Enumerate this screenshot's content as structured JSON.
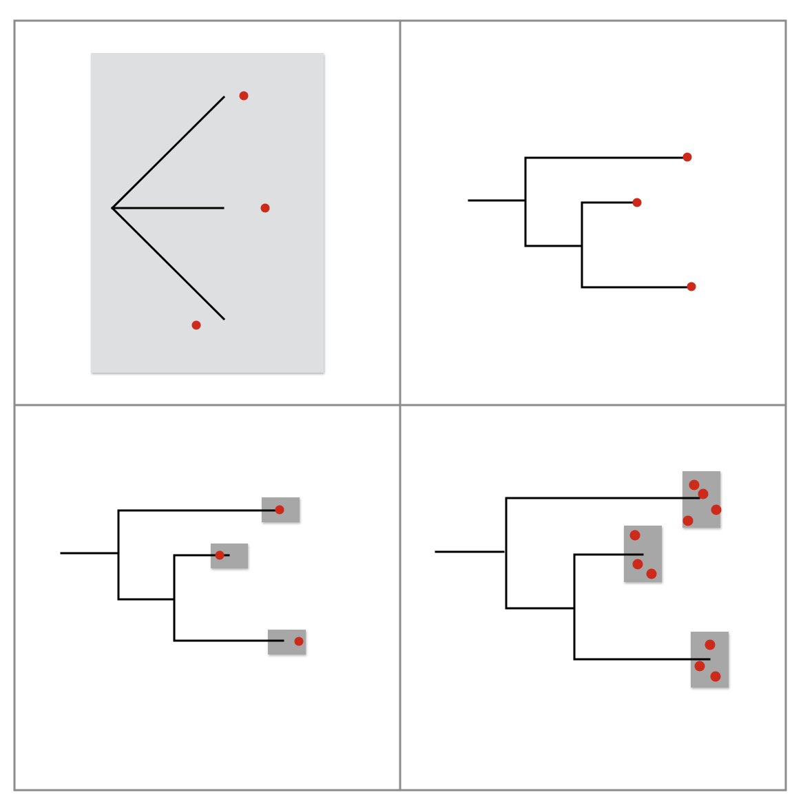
{
  "colors": {
    "background": "#ffffff",
    "grid_lines": "#8c8c8c",
    "branches": "#000000",
    "tips": "#cc2a1b",
    "panel1_background": "#dedfe1",
    "tip_boxes": "#a7a7a7"
  },
  "panels": [
    {
      "id": "star-tree",
      "tips": 3,
      "points_per_tip": [
        1,
        1,
        1
      ],
      "style": "star"
    },
    {
      "id": "rooted-tree",
      "tips": 3,
      "points_per_tip": [
        1,
        1,
        1
      ],
      "style": "rectangular"
    },
    {
      "id": "tree-with-boxes",
      "tips": 3,
      "points_per_tip": [
        1,
        1,
        1
      ],
      "style": "rectangular-boxed"
    },
    {
      "id": "tree-with-samples",
      "tips": 3,
      "points_per_tip": [
        4,
        3,
        3
      ],
      "style": "rectangular-boxed"
    }
  ]
}
